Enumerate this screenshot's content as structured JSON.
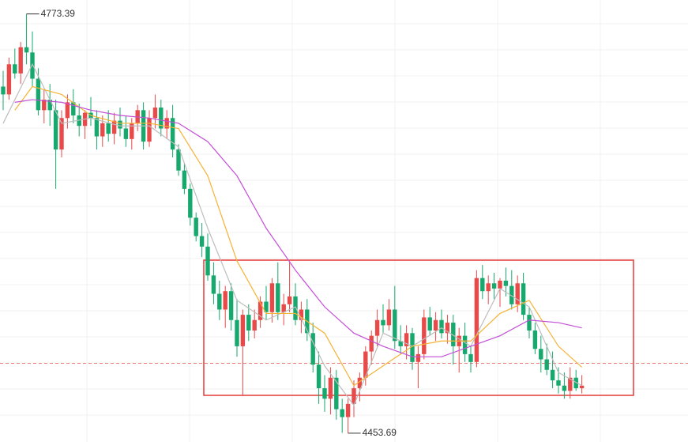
{
  "chart_data": {
    "type": "candlestick",
    "ylim": [
      4447,
      4784
    ],
    "up_color": "#e84a4a",
    "down_color": "#16a86c",
    "ohlc": [
      [
        4718,
        4730,
        4700,
        4712
      ],
      [
        4712,
        4740,
        4708,
        4735
      ],
      [
        4735,
        4747,
        4724,
        4728
      ],
      [
        4728,
        4752,
        4720,
        4748
      ],
      [
        4748,
        4773.39,
        4735,
        4744
      ],
      [
        4744,
        4760,
        4718,
        4724
      ],
      [
        4724,
        4732,
        4696,
        4700
      ],
      [
        4700,
        4716,
        4690,
        4708
      ],
      [
        4708,
        4720,
        4688,
        4700
      ],
      [
        4700,
        4708,
        4640,
        4670
      ],
      [
        4670,
        4700,
        4664,
        4694
      ],
      [
        4694,
        4712,
        4686,
        4706
      ],
      [
        4706,
        4716,
        4690,
        4696
      ],
      [
        4696,
        4705,
        4680,
        4688
      ],
      [
        4688,
        4700,
        4678,
        4698
      ],
      [
        4698,
        4710,
        4688,
        4694
      ],
      [
        4694,
        4700,
        4670,
        4680
      ],
      [
        4680,
        4696,
        4672,
        4690
      ],
      [
        4690,
        4700,
        4676,
        4682
      ],
      [
        4682,
        4698,
        4674,
        4692
      ],
      [
        4692,
        4702,
        4680,
        4686
      ],
      [
        4686,
        4696,
        4672,
        4678
      ],
      [
        4678,
        4694,
        4670,
        4690
      ],
      [
        4690,
        4704,
        4684,
        4700
      ],
      [
        4700,
        4706,
        4670,
        4676
      ],
      [
        4676,
        4700,
        4672,
        4694
      ],
      [
        4694,
        4712,
        4686,
        4702
      ],
      [
        4702,
        4708,
        4680,
        4686
      ],
      [
        4686,
        4700,
        4678,
        4694
      ],
      [
        4694,
        4704,
        4664,
        4670
      ],
      [
        4670,
        4674,
        4650,
        4654
      ],
      [
        4654,
        4660,
        4636,
        4640
      ],
      [
        4640,
        4644,
        4612,
        4618
      ],
      [
        4618,
        4622,
        4600,
        4604
      ],
      [
        4604,
        4614,
        4588,
        4596
      ],
      [
        4596,
        4606,
        4570,
        4574
      ],
      [
        4574,
        4584,
        4552,
        4560
      ],
      [
        4560,
        4570,
        4540,
        4548
      ],
      [
        4548,
        4566,
        4534,
        4562
      ],
      [
        4562,
        4568,
        4532,
        4540
      ],
      [
        4540,
        4556,
        4512,
        4520
      ],
      [
        4520,
        4548,
        4482,
        4544
      ],
      [
        4544,
        4552,
        4524,
        4532
      ],
      [
        4532,
        4548,
        4526,
        4540
      ],
      [
        4540,
        4558,
        4534,
        4554
      ],
      [
        4554,
        4566,
        4540,
        4546
      ],
      [
        4546,
        4572,
        4538,
        4568
      ],
      [
        4568,
        4584,
        4540,
        4546
      ],
      [
        4546,
        4560,
        4536,
        4552
      ],
      [
        4552,
        4584,
        4546,
        4558
      ],
      [
        4558,
        4568,
        4536,
        4540
      ],
      [
        4540,
        4554,
        4530,
        4548
      ],
      [
        4548,
        4556,
        4524,
        4530
      ],
      [
        4530,
        4538,
        4500,
        4506
      ],
      [
        4506,
        4516,
        4476,
        4488
      ],
      [
        4488,
        4498,
        4470,
        4480
      ],
      [
        4480,
        4504,
        4468,
        4496
      ],
      [
        4496,
        4502,
        4464,
        4472
      ],
      [
        4472,
        4480,
        4454,
        4466
      ],
      [
        4466,
        4480,
        4453.69,
        4476
      ],
      [
        4476,
        4494,
        4466,
        4488
      ],
      [
        4488,
        4500,
        4478,
        4496
      ],
      [
        4496,
        4520,
        4490,
        4516
      ],
      [
        4516,
        4532,
        4506,
        4528
      ],
      [
        4528,
        4548,
        4520,
        4540
      ],
      [
        4540,
        4552,
        4530,
        4536
      ],
      [
        4536,
        4556,
        4532,
        4548
      ],
      [
        4548,
        4566,
        4518,
        4524
      ],
      [
        4524,
        4536,
        4514,
        4520
      ],
      [
        4520,
        4536,
        4510,
        4530
      ],
      [
        4530,
        4534,
        4502,
        4508
      ],
      [
        4508,
        4520,
        4488,
        4514
      ],
      [
        4514,
        4548,
        4510,
        4542
      ],
      [
        4542,
        4550,
        4528,
        4532
      ],
      [
        4532,
        4546,
        4524,
        4540
      ],
      [
        4540,
        4548,
        4526,
        4530
      ],
      [
        4530,
        4544,
        4522,
        4538
      ],
      [
        4538,
        4544,
        4506,
        4520
      ],
      [
        4520,
        4534,
        4500,
        4528
      ],
      [
        4528,
        4538,
        4508,
        4514
      ],
      [
        4514,
        4520,
        4500,
        4508
      ],
      [
        4508,
        4578,
        4504,
        4572
      ],
      [
        4572,
        4582,
        4556,
        4562
      ],
      [
        4562,
        4574,
        4552,
        4568
      ],
      [
        4568,
        4576,
        4556,
        4564
      ],
      [
        4564,
        4572,
        4550,
        4570
      ],
      [
        4570,
        4580,
        4558,
        4566
      ],
      [
        4566,
        4578,
        4548,
        4552
      ],
      [
        4552,
        4574,
        4546,
        4568
      ],
      [
        4568,
        4576,
        4540,
        4544
      ],
      [
        4544,
        4550,
        4526,
        4532
      ],
      [
        4532,
        4538,
        4514,
        4518
      ],
      [
        4518,
        4528,
        4500,
        4510
      ],
      [
        4510,
        4522,
        4498,
        4502
      ],
      [
        4502,
        4516,
        4488,
        4494
      ],
      [
        4494,
        4504,
        4484,
        4490
      ],
      [
        4490,
        4500,
        4480,
        4486
      ],
      [
        4486,
        4504,
        4480,
        4496
      ],
      [
        4496,
        4502,
        4486,
        4488
      ],
      [
        4488,
        4498,
        4484,
        4490
      ]
    ],
    "extremes": [
      {
        "value": 4773.39,
        "label": "4773.39"
      },
      {
        "value": 4453.69,
        "label": "4453.69"
      }
    ],
    "current_price": 4507,
    "ma_lines": [
      {
        "color": "#bdbdbd",
        "x": [
          0,
          5,
          10,
          15,
          20,
          25,
          30,
          35,
          40,
          45,
          50,
          55,
          60,
          65,
          70,
          75,
          80,
          85,
          90,
          95,
          99
        ],
        "values": [
          4690,
          4735,
          4690,
          4694,
          4688,
          4688,
          4672,
          4610,
          4555,
          4540,
          4550,
          4505,
          4475,
          4530,
          4520,
          4534,
          4520,
          4564,
          4550,
          4500,
          4490
        ]
      },
      {
        "color": "#f5b335",
        "x": [
          2,
          5,
          10,
          15,
          20,
          25,
          30,
          35,
          40,
          45,
          50,
          55,
          60,
          65,
          70,
          75,
          80,
          85,
          90,
          95,
          99
        ],
        "values": [
          4700,
          4718,
          4712,
          4696,
          4690,
          4690,
          4686,
          4650,
          4585,
          4545,
          4545,
          4530,
          4490,
          4505,
          4520,
          4524,
          4524,
          4545,
          4555,
          4520,
          4504
        ]
      },
      {
        "color": "#c34fd6",
        "x": [
          2,
          5,
          10,
          15,
          20,
          25,
          30,
          35,
          40,
          45,
          50,
          55,
          60,
          65,
          70,
          75,
          80,
          85,
          90,
          95,
          99
        ],
        "values": [
          4706,
          4708,
          4706,
          4700,
          4696,
          4694,
          4690,
          4676,
          4650,
          4610,
          4578,
          4550,
          4530,
          4520,
          4512,
          4512,
          4520,
          4528,
          4540,
          4538,
          4534
        ]
      }
    ]
  }
}
